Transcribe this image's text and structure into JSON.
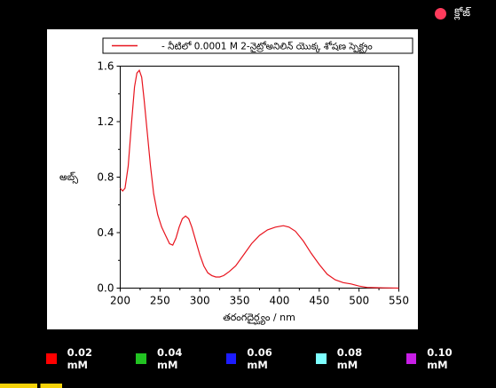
{
  "close_button": {
    "label": "క్లోజ్",
    "dot_color": "#ff3b5c"
  },
  "chart_data": {
    "type": "line",
    "legend_label": "- నీటిలో 0.0001 M 2-నైట్రోఅనిలిన్ యొక్క శోషణ స్పెక్ట్రం",
    "xlabel": "తరంగదైర్ఘ్యం / nm",
    "ylabel": "అబ్స్",
    "xlim": [
      200,
      550
    ],
    "ylim": [
      0,
      1.6
    ],
    "x_ticks": [
      "200",
      "250",
      "300",
      "350",
      "400",
      "450",
      "500",
      "550"
    ],
    "y_ticks": [
      "0.0",
      "0.4",
      "0.8",
      "1.2",
      "1.6"
    ],
    "line_color": "#e8141e",
    "series": [
      {
        "x": [
          200,
          203,
          206,
          210,
          214,
          218,
          221,
          224,
          227,
          230,
          234,
          238,
          242,
          247,
          252,
          257,
          262,
          266,
          270,
          274,
          278,
          282,
          286,
          290,
          295,
          300,
          305,
          310,
          315,
          320,
          325,
          330,
          337,
          345,
          355,
          365,
          375,
          385,
          395,
          405,
          412,
          420,
          430,
          440,
          450,
          460,
          470,
          480,
          490,
          500,
          510,
          520,
          530,
          540,
          550
        ],
        "y": [
          0.72,
          0.7,
          0.72,
          0.88,
          1.18,
          1.45,
          1.55,
          1.57,
          1.52,
          1.36,
          1.12,
          0.88,
          0.68,
          0.53,
          0.44,
          0.38,
          0.32,
          0.31,
          0.36,
          0.44,
          0.5,
          0.52,
          0.5,
          0.44,
          0.34,
          0.24,
          0.16,
          0.11,
          0.09,
          0.08,
          0.08,
          0.09,
          0.12,
          0.16,
          0.24,
          0.32,
          0.38,
          0.42,
          0.44,
          0.45,
          0.44,
          0.41,
          0.34,
          0.25,
          0.17,
          0.1,
          0.06,
          0.04,
          0.03,
          0.015,
          0.005,
          0.003,
          0.002,
          0.001,
          0.0
        ]
      }
    ]
  },
  "concentrations": [
    {
      "label": "0.02 mM",
      "color": "#ff0000"
    },
    {
      "label": "0.04 mM",
      "color": "#22c322"
    },
    {
      "label": "0.06 mM",
      "color": "#1c1cff"
    },
    {
      "label": "0.08 mM",
      "color": "#7dffff"
    },
    {
      "label": "0.10 mM",
      "color": "#c81ee6"
    }
  ]
}
